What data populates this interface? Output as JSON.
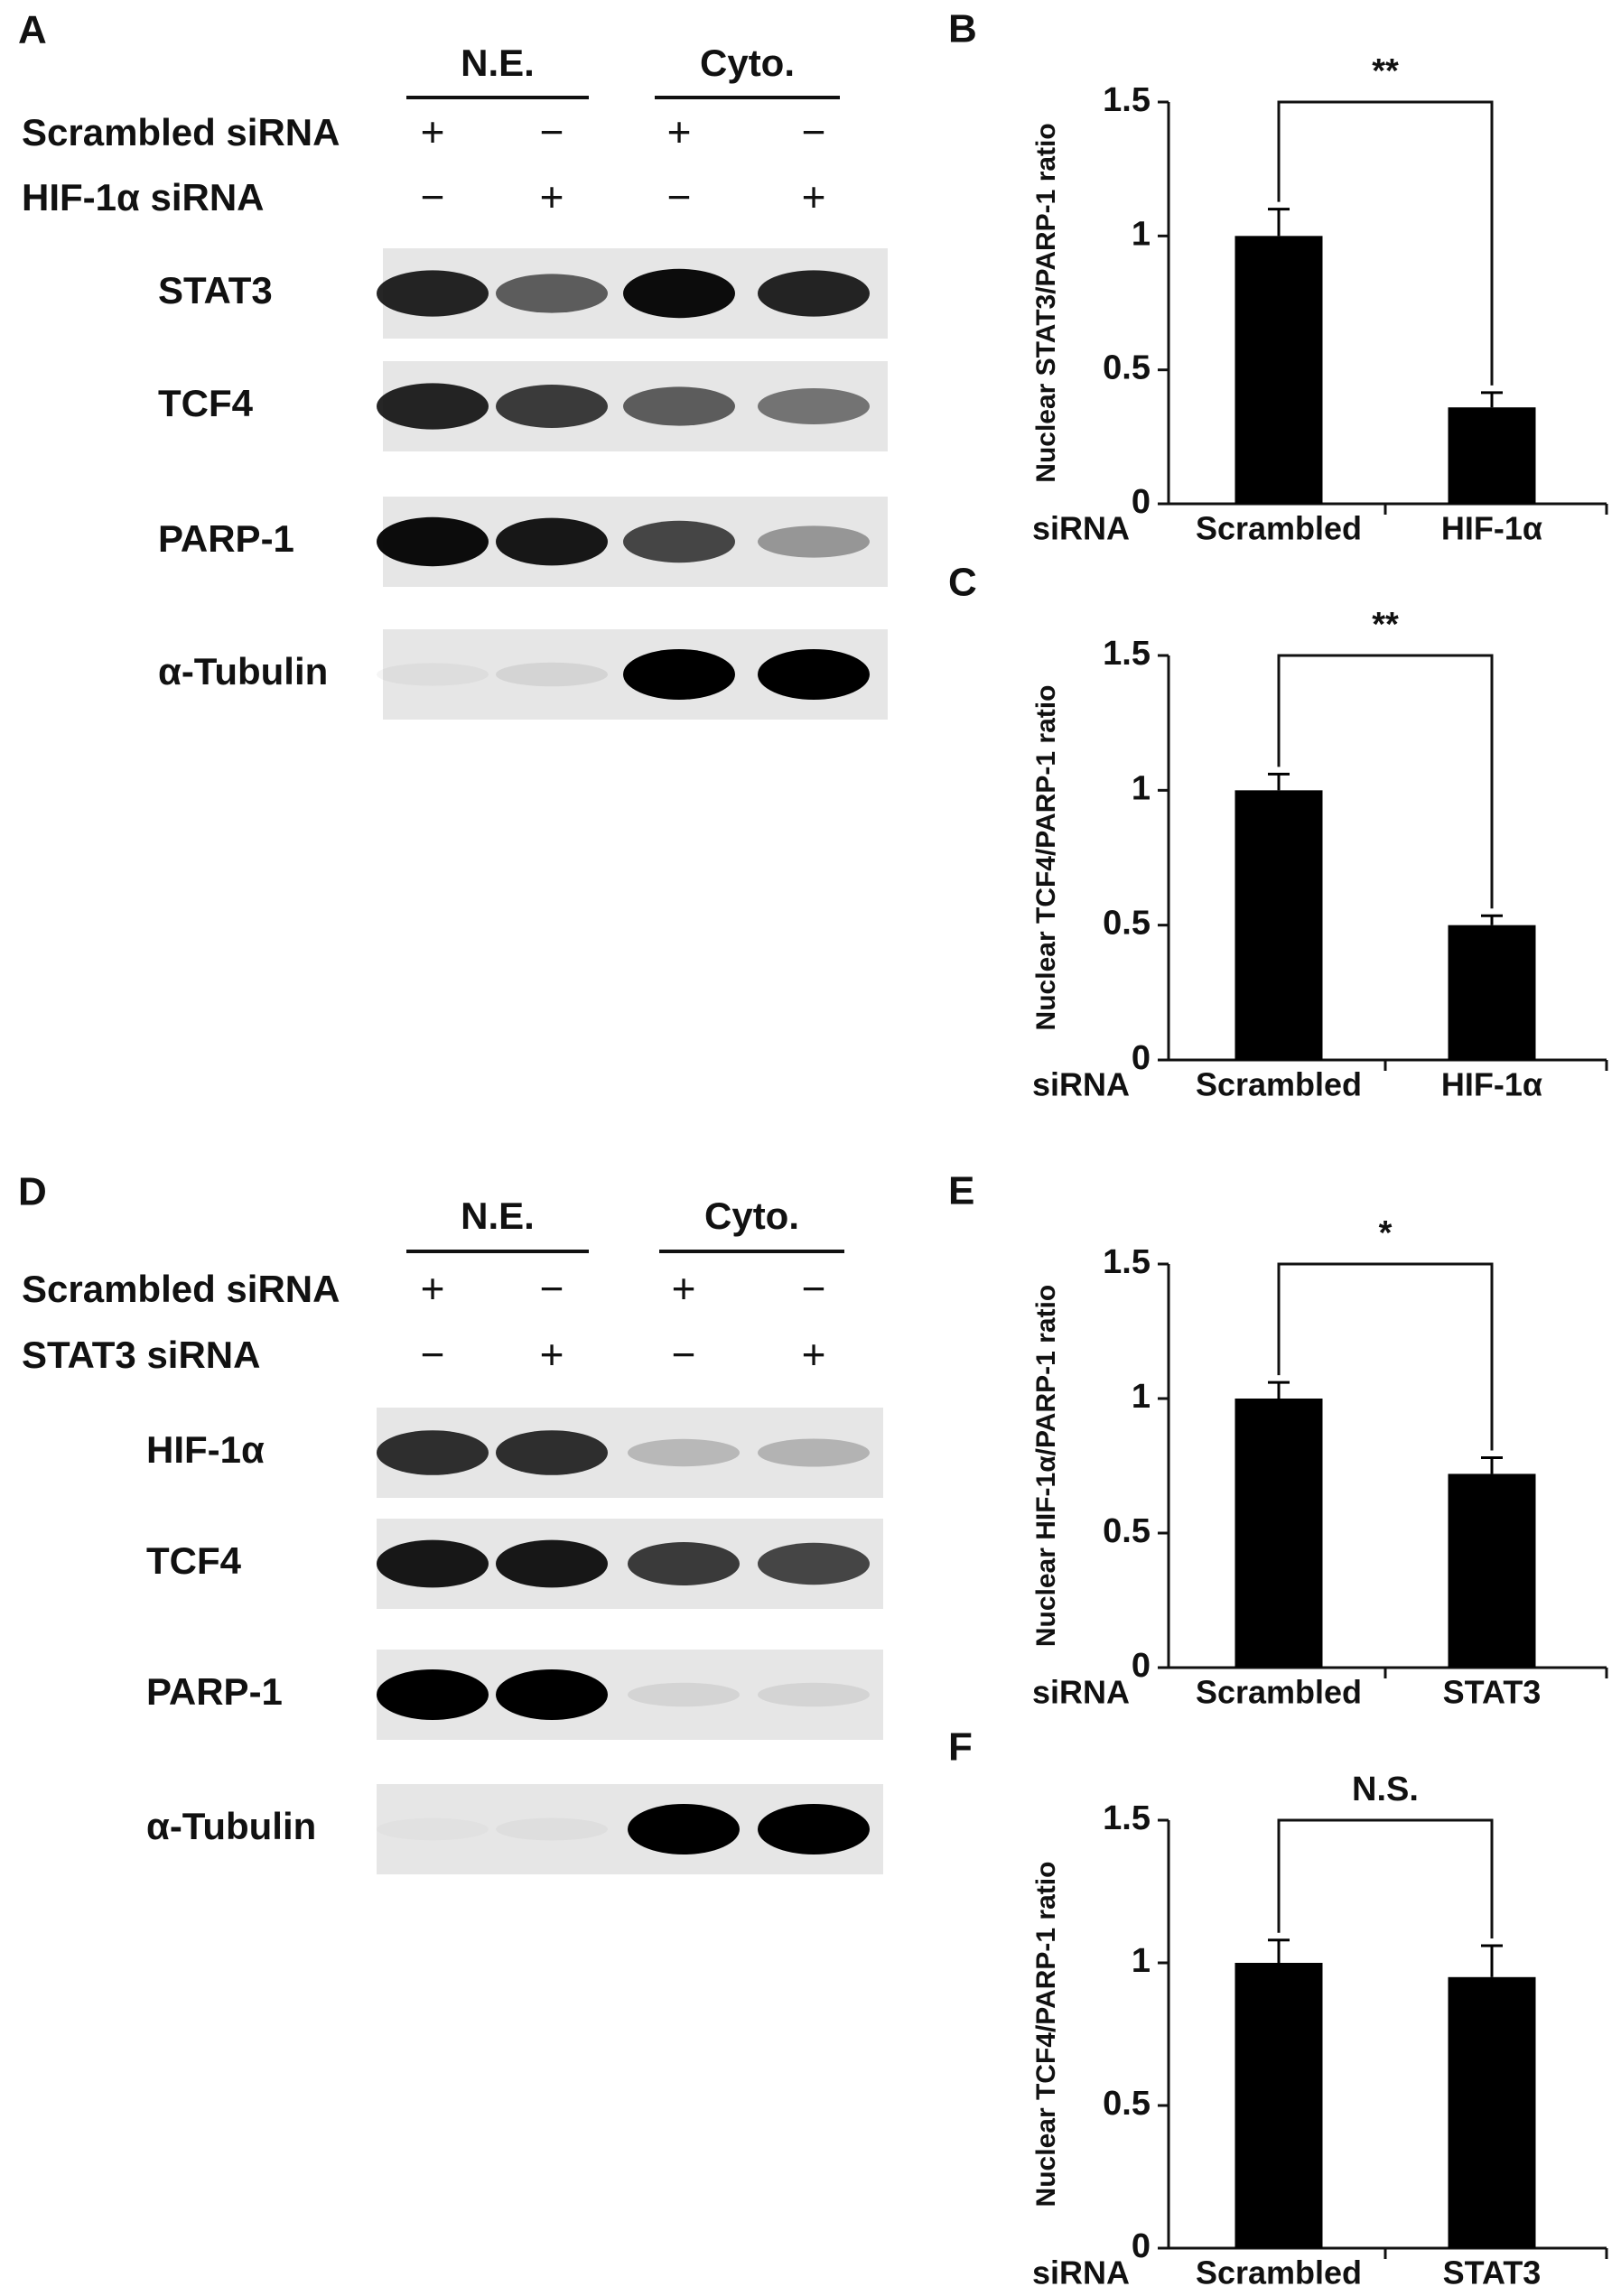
{
  "blots": [
    {
      "panel_label": "A",
      "groups": [
        "N.E.",
        "Cyto."
      ],
      "rows": [
        {
          "label": "Scrambled siRNA",
          "signs": [
            "+",
            "−",
            "+",
            "−"
          ]
        },
        {
          "label": "HIF-1α siRNA",
          "signs": [
            "−",
            "+",
            "−",
            "+"
          ]
        }
      ],
      "bands": [
        "STAT3",
        "TCF4",
        "PARP-1",
        "α-Tubulin"
      ]
    },
    {
      "panel_label": "D",
      "groups": [
        "N.E.",
        "Cyto."
      ],
      "rows": [
        {
          "label": "Scrambled siRNA",
          "signs": [
            "+",
            "−",
            "+",
            "−"
          ]
        },
        {
          "label": "STAT3 siRNA",
          "signs": [
            "−",
            "+",
            "−",
            "+"
          ]
        }
      ],
      "bands": [
        "HIF-1α",
        "TCF4",
        "PARP-1",
        "α-Tubulin"
      ]
    }
  ],
  "chart_data": [
    {
      "type": "bar",
      "panel_label": "B",
      "ylabel": "Nuclear STAT3/PARP-1 ratio",
      "xlabel": "siRNA",
      "categories": [
        "Scrambled",
        "HIF-1α"
      ],
      "values": [
        1,
        0.36
      ],
      "errors": [
        0.1,
        0.055
      ],
      "ylim": [
        0,
        1.5
      ],
      "yticks": [
        0,
        0.5,
        1,
        1.5
      ],
      "significance": "**",
      "color": "#000000"
    },
    {
      "type": "bar",
      "panel_label": "C",
      "ylabel": "Nuclear TCF4/PARP-1 ratio",
      "xlabel": "siRNA",
      "categories": [
        "Scrambled",
        "HIF-1α"
      ],
      "values": [
        1,
        0.5
      ],
      "errors": [
        0.06,
        0.035
      ],
      "ylim": [
        0,
        1.5
      ],
      "yticks": [
        0,
        0.5,
        1,
        1.5
      ],
      "significance": "**",
      "color": "#000000"
    },
    {
      "type": "bar",
      "panel_label": "E",
      "ylabel": "Nuclear HIF-1α/PARP-1 ratio",
      "xlabel": "siRNA",
      "categories": [
        "Scrambled",
        "STAT3"
      ],
      "values": [
        1,
        0.72
      ],
      "errors": [
        0.06,
        0.06
      ],
      "ylim": [
        0,
        1.5
      ],
      "yticks": [
        0,
        0.5,
        1,
        1.5
      ],
      "significance": "*",
      "color": "#000000"
    },
    {
      "type": "bar",
      "panel_label": "F",
      "ylabel": "Nuclear TCF4/PARP-1 ratio",
      "xlabel": "siRNA",
      "categories": [
        "Scrambled",
        "STAT3"
      ],
      "values": [
        1,
        0.95
      ],
      "errors": [
        0.08,
        0.11
      ],
      "ylim": [
        0,
        1.5
      ],
      "yticks": [
        0,
        0.5,
        1,
        1.5
      ],
      "significance": "N.S.",
      "color": "#000000"
    }
  ]
}
